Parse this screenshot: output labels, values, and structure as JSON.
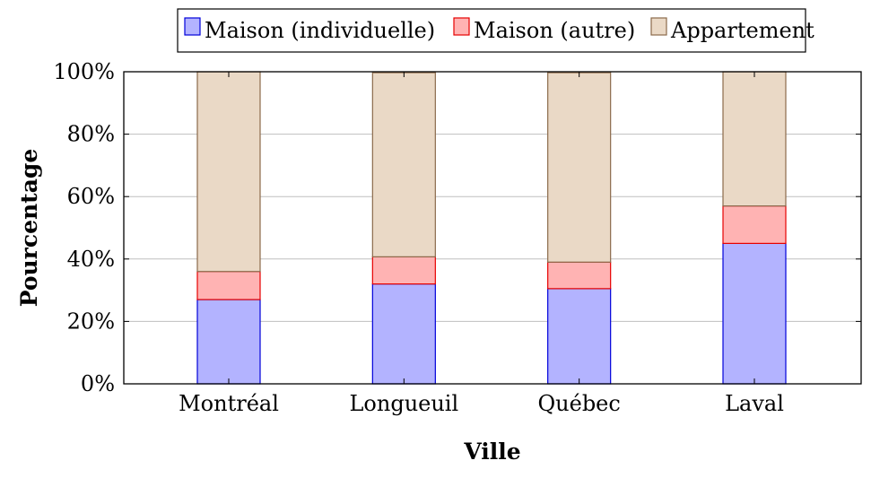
{
  "chart_data": {
    "type": "bar",
    "stacked": true,
    "categories": [
      "Montréal",
      "Longueuil",
      "Québec",
      "Laval"
    ],
    "series": [
      {
        "name": "Maison (individuelle)",
        "values": [
          27,
          32,
          30.5,
          45
        ],
        "fill": "#b3b3ff",
        "stroke": "#0000d9"
      },
      {
        "name": "Maison (autre)",
        "values": [
          9,
          8.7,
          8.5,
          12
        ],
        "fill": "#ffb3b3",
        "stroke": "#e60000"
      },
      {
        "name": "Appartement",
        "values": [
          64,
          59,
          60.7,
          43
        ],
        "fill": "#ead9c6",
        "stroke": "#8b6a4b"
      }
    ],
    "xlabel": "Ville",
    "ylabel": "Pourcentage",
    "ylim": [
      0,
      100
    ],
    "yticks": [
      "0%",
      "20%",
      "40%",
      "60%",
      "80%",
      "100%"
    ],
    "ytick_values": [
      0,
      20,
      40,
      60,
      80,
      100
    ],
    "grid": "horizontal",
    "legend": "top"
  }
}
